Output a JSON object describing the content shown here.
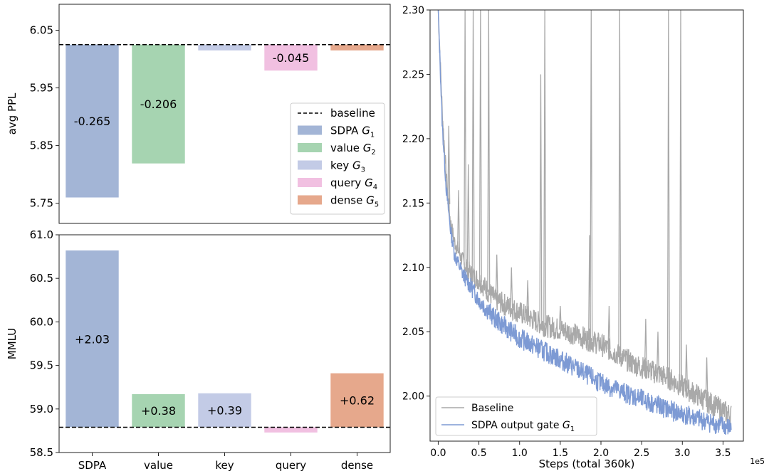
{
  "colors": {
    "sdpa": "#a3b5d6",
    "value": "#a6d4b1",
    "key": "#c3cbe6",
    "query": "#f1c0e1",
    "dense": "#e6a88c",
    "baseline_line": "#000000",
    "baseline_curve": "#a9a9a9",
    "gated_curve": "#7d9ad4"
  },
  "chart_data": [
    {
      "type": "bar",
      "id": "ppl",
      "ylabel": "avg PPL",
      "baseline_value": 6.025,
      "ylim": [
        5.715,
        6.095
      ],
      "yticks": [
        5.75,
        5.85,
        5.95,
        6.05
      ],
      "ytick_labels": [
        "5.75",
        "5.85",
        "5.95",
        "6.05"
      ],
      "categories": [
        "SDPA",
        "value",
        "key",
        "query",
        "dense"
      ],
      "values": [
        5.76,
        5.819,
        6.015,
        5.98,
        6.015
      ],
      "bar_labels": [
        "-0.265",
        "-0.206",
        "",
        "-0.045",
        ""
      ],
      "legend": {
        "position": "lower-right",
        "entries": [
          {
            "kind": "line",
            "text": "baseline"
          },
          {
            "kind": "patch",
            "text": "SDPA",
            "sub": "1"
          },
          {
            "kind": "patch",
            "text": "value",
            "sub": "2"
          },
          {
            "kind": "patch",
            "text": "key",
            "sub": "3"
          },
          {
            "kind": "patch",
            "text": "query",
            "sub": "4"
          },
          {
            "kind": "patch",
            "text": "dense",
            "sub": "5"
          }
        ],
        "gate_symbol": "G"
      }
    },
    {
      "type": "bar",
      "id": "mmlu",
      "ylabel": "MMLU",
      "baseline_value": 58.79,
      "ylim": [
        58.5,
        61.0
      ],
      "yticks": [
        58.5,
        59.0,
        59.5,
        60.0,
        60.5,
        61.0
      ],
      "ytick_labels": [
        "58.5",
        "59.0",
        "59.5",
        "60.0",
        "60.5",
        "61.0"
      ],
      "categories": [
        "SDPA",
        "value",
        "key",
        "query",
        "dense"
      ],
      "xtick_labels": [
        "SDPA",
        "value",
        "key",
        "query",
        "dense"
      ],
      "values": [
        60.82,
        59.17,
        59.18,
        58.73,
        59.41
      ],
      "bar_labels": [
        "+2.03",
        "+0.38",
        "+0.39",
        "",
        "+0.62"
      ]
    },
    {
      "type": "line",
      "id": "loss",
      "xlabel": "Steps (total 360k)",
      "x_offset_label": "1e5",
      "xlim": [
        -0.1,
        3.75
      ],
      "ylim": [
        1.965,
        2.3
      ],
      "xticks": [
        0.0,
        0.5,
        1.0,
        1.5,
        2.0,
        2.5,
        3.0,
        3.5
      ],
      "xtick_labels": [
        "0.0",
        "0.5",
        "1.0",
        "1.5",
        "2.0",
        "2.5",
        "3.0",
        "3.5"
      ],
      "yticks": [
        2.0,
        2.05,
        2.1,
        2.15,
        2.2,
        2.25,
        2.3
      ],
      "ytick_labels": [
        "2.00",
        "2.05",
        "2.10",
        "2.15",
        "2.20",
        "2.25",
        "2.30"
      ],
      "series": [
        {
          "name": "Baseline",
          "x": [
            0.0,
            0.05,
            0.1,
            0.15,
            0.2,
            0.3,
            0.4,
            0.5,
            0.7,
            1.0,
            1.3,
            1.6,
            2.0,
            2.4,
            2.8,
            3.2,
            3.6
          ],
          "values": [
            2.3,
            2.22,
            2.17,
            2.135,
            2.12,
            2.105,
            2.095,
            2.09,
            2.075,
            2.065,
            2.055,
            2.05,
            2.04,
            2.025,
            2.015,
            2.0,
            1.985
          ],
          "spikes": [
            {
              "x": 0.33,
              "y": 2.3
            },
            {
              "x": 0.43,
              "y": 2.3
            },
            {
              "x": 0.52,
              "y": 2.3
            },
            {
              "x": 0.62,
              "y": 2.3
            },
            {
              "x": 1.26,
              "y": 2.25
            },
            {
              "x": 1.31,
              "y": 2.3
            },
            {
              "x": 1.88,
              "y": 2.3
            },
            {
              "x": 2.23,
              "y": 2.3
            },
            {
              "x": 2.83,
              "y": 2.3
            },
            {
              "x": 2.98,
              "y": 2.3
            },
            {
              "x": 0.13,
              "y": 2.21
            },
            {
              "x": 0.25,
              "y": 2.16
            },
            {
              "x": 0.37,
              "y": 2.18
            },
            {
              "x": 0.72,
              "y": 2.11
            },
            {
              "x": 0.9,
              "y": 2.1
            },
            {
              "x": 1.1,
              "y": 2.09
            },
            {
              "x": 1.5,
              "y": 2.07
            },
            {
              "x": 1.86,
              "y": 2.125
            },
            {
              "x": 2.1,
              "y": 2.07
            },
            {
              "x": 2.55,
              "y": 2.06
            },
            {
              "x": 2.7,
              "y": 2.05
            },
            {
              "x": 3.05,
              "y": 2.04
            },
            {
              "x": 3.3,
              "y": 2.03
            }
          ]
        },
        {
          "name": "SDPA output gate",
          "sub": "1",
          "x": [
            0.0,
            0.05,
            0.1,
            0.15,
            0.2,
            0.3,
            0.4,
            0.5,
            0.7,
            1.0,
            1.3,
            1.6,
            2.0,
            2.4,
            2.8,
            3.2,
            3.6
          ],
          "values": [
            2.3,
            2.21,
            2.16,
            2.13,
            2.11,
            2.095,
            2.085,
            2.075,
            2.06,
            2.045,
            2.035,
            2.025,
            2.01,
            2.0,
            1.99,
            1.982,
            1.975
          ]
        }
      ],
      "legend": {
        "position": "lower-left"
      }
    }
  ]
}
